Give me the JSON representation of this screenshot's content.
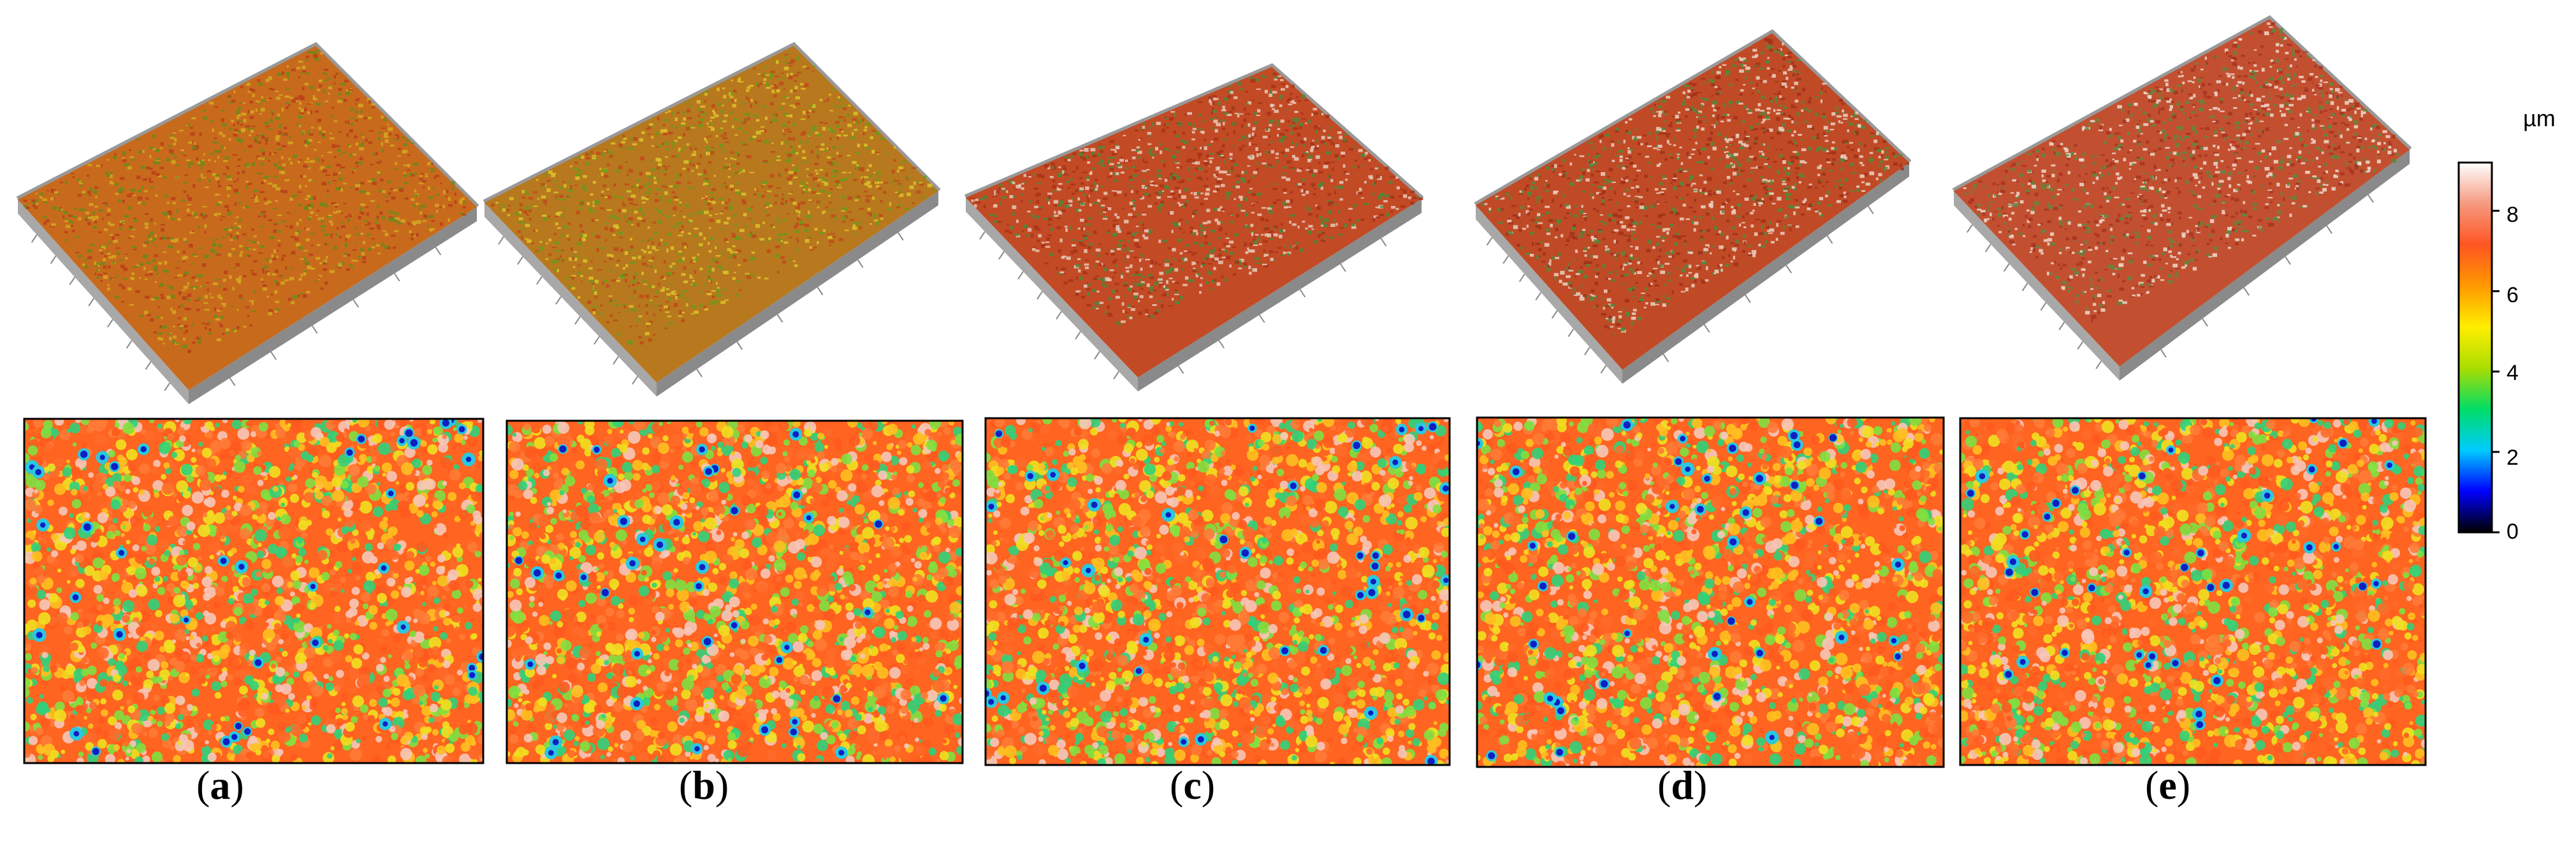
{
  "figure": {
    "panel_labels": [
      "a",
      "b",
      "c",
      "d",
      "e"
    ],
    "colorbar": {
      "unit": "µm",
      "ticks": [
        "0",
        "2",
        "4",
        "6",
        "8"
      ],
      "range": [
        0,
        9.2
      ],
      "gradient": [
        "#000000",
        "#0000ff",
        "#00ccff",
        "#00dd66",
        "#aadd00",
        "#ffee00",
        "#ff9900",
        "#ff5522",
        "#f59a80",
        "#ffffff"
      ]
    },
    "panels": [
      {
        "id": "a",
        "surface_3d_base": "#c86a1c",
        "surface_3d_speckle": [
          "#6a8a1a",
          "#d4a820",
          "#b8401a"
        ]
      },
      {
        "id": "b",
        "surface_3d_base": "#b8781e",
        "surface_3d_speckle": [
          "#6a9a1a",
          "#dcc22a",
          "#c04a1a"
        ]
      },
      {
        "id": "c",
        "surface_3d_base": "#c24a24",
        "surface_3d_speckle": [
          "#e8c8b8",
          "#4a8a3a",
          "#a83218"
        ]
      },
      {
        "id": "d",
        "surface_3d_base": "#c04a26",
        "surface_3d_speckle": [
          "#ecd0c2",
          "#508a3a",
          "#a03018"
        ]
      },
      {
        "id": "e",
        "surface_3d_base": "#c25030",
        "surface_3d_speckle": [
          "#f0d8cc",
          "#5a8a40",
          "#a83420"
        ]
      }
    ]
  }
}
